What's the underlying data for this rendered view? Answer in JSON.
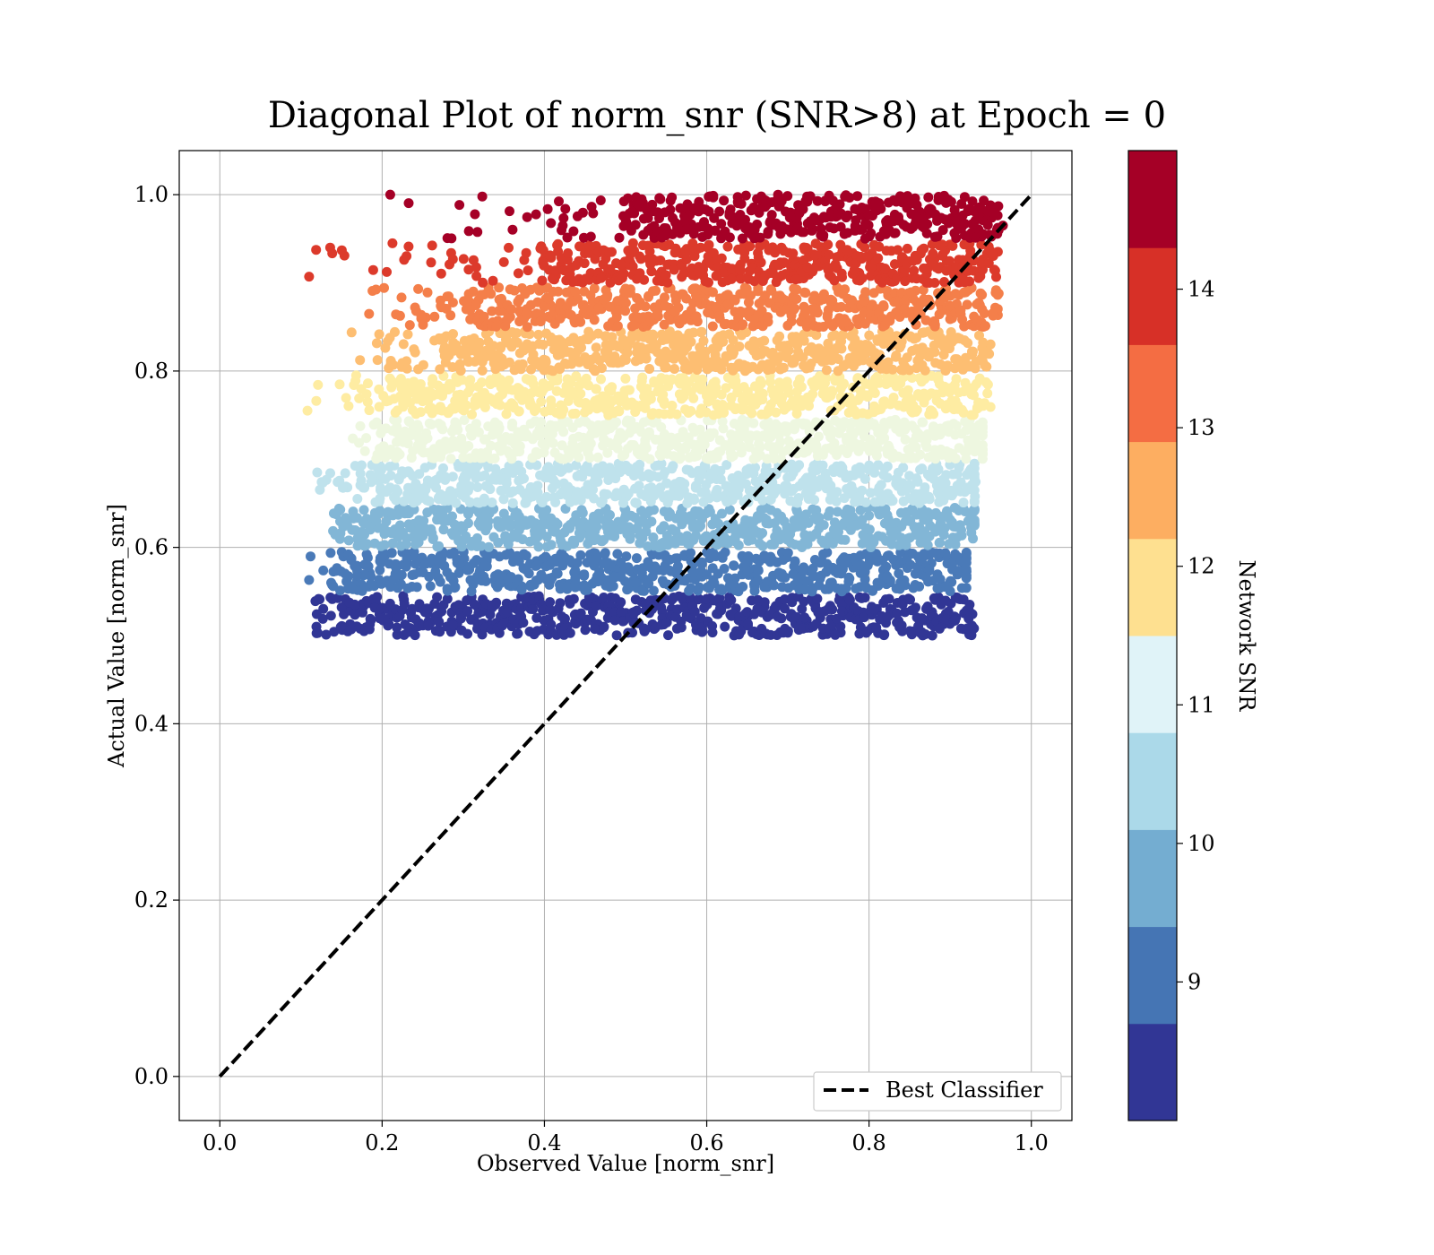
{
  "chart_data": {
    "type": "scatter",
    "title": "Diagonal Plot of norm_snr (SNR>8) at Epoch = 0",
    "xlabel": "Observed Value [norm_snr]",
    "ylabel": "Actual Value [norm_snr]",
    "xlim": [
      -0.05,
      1.05
    ],
    "ylim": [
      -0.05,
      1.05
    ],
    "xticks": [
      0.0,
      0.2,
      0.4,
      0.6,
      0.8,
      1.0
    ],
    "yticks": [
      0.0,
      0.2,
      0.4,
      0.6,
      0.8,
      1.0
    ],
    "xtick_labels": [
      "0.0",
      "0.2",
      "0.4",
      "0.6",
      "0.8",
      "1.0"
    ],
    "ytick_labels": [
      "0.0",
      "0.2",
      "0.4",
      "0.6",
      "0.8",
      "1.0"
    ],
    "grid": true,
    "legend": {
      "position": "lower-right",
      "entries": [
        "Best Classifier"
      ]
    },
    "reference_line": {
      "label": "Best Classifier",
      "style": "dashed",
      "color": "#000000",
      "x": [
        0.0,
        1.0
      ],
      "y": [
        0.0,
        1.0
      ]
    },
    "colorbar": {
      "label": "Network SNR",
      "range": [
        8,
        15
      ],
      "ticks": [
        9,
        10,
        11,
        12,
        13,
        14
      ],
      "tick_labels": [
        "9",
        "10",
        "11",
        "12",
        "13",
        "14"
      ],
      "colors": [
        "#313695",
        "#4575b4",
        "#74add1",
        "#abd9e9",
        "#e0f3f8",
        "#fee090",
        "#fdae61",
        "#f46d43",
        "#d73027",
        "#a50026"
      ]
    },
    "bands": [
      {
        "snr": 8.35,
        "color": "#313695",
        "y": [
          0.5,
          0.545
        ],
        "x": [
          0.17,
          0.92
        ],
        "x_tail": [
          0.11,
          0.93
        ]
      },
      {
        "snr": 9.05,
        "color": "#4a7ab8",
        "y": [
          0.55,
          0.595
        ],
        "x": [
          0.17,
          0.92
        ],
        "x_tail": [
          0.11,
          0.92
        ]
      },
      {
        "snr": 9.75,
        "color": "#82b6d6",
        "y": [
          0.6,
          0.645
        ],
        "x": [
          0.18,
          0.93
        ],
        "x_tail": [
          0.13,
          0.93
        ]
      },
      {
        "snr": 10.45,
        "color": "#bfe2ec",
        "y": [
          0.65,
          0.695
        ],
        "x": [
          0.2,
          0.93
        ],
        "x_tail": [
          0.11,
          0.93
        ]
      },
      {
        "snr": 11.15,
        "color": "#eef7e0",
        "y": [
          0.7,
          0.745
        ],
        "x": [
          0.22,
          0.94
        ],
        "x_tail": [
          0.16,
          0.94
        ]
      },
      {
        "snr": 11.85,
        "color": "#feeca2",
        "y": [
          0.75,
          0.795
        ],
        "x": [
          0.23,
          0.94
        ],
        "x_tail": [
          0.11,
          0.95
        ]
      },
      {
        "snr": 12.55,
        "color": "#fdbe72",
        "y": [
          0.8,
          0.845
        ],
        "x": [
          0.28,
          0.94
        ],
        "x_tail": [
          0.16,
          0.95
        ]
      },
      {
        "snr": 13.25,
        "color": "#f47f4a",
        "y": [
          0.85,
          0.895
        ],
        "x": [
          0.31,
          0.95
        ],
        "x_tail": [
          0.17,
          0.96
        ]
      },
      {
        "snr": 13.95,
        "color": "#dc3a2b",
        "y": [
          0.9,
          0.945
        ],
        "x": [
          0.4,
          0.95
        ],
        "x_tail": [
          0.11,
          0.96
        ]
      },
      {
        "snr": 14.65,
        "color": "#a50026",
        "y": [
          0.95,
          1.0
        ],
        "x": [
          0.5,
          0.95
        ],
        "x_tail": [
          0.2,
          0.96
        ]
      }
    ],
    "notable_points": [
      {
        "x": 0.11,
        "y": 0.907,
        "color": "#dc3a2b"
      },
      {
        "x": 0.136,
        "y": 0.94,
        "color": "#dc3a2b"
      },
      {
        "x": 0.21,
        "y": 1.0,
        "color": "#a50026"
      },
      {
        "x": 0.108,
        "y": 0.755,
        "color": "#feeca2"
      },
      {
        "x": 0.12,
        "y": 0.685,
        "color": "#bfe2ec"
      },
      {
        "x": 0.11,
        "y": 0.563,
        "color": "#4a7ab8"
      },
      {
        "x": 0.119,
        "y": 0.51,
        "color": "#313695"
      },
      {
        "x": 0.878,
        "y": 0.5,
        "color": "#313695"
      },
      {
        "x": 0.906,
        "y": 0.517,
        "color": "#313695"
      },
      {
        "x": 0.928,
        "y": 0.61,
        "color": "#82b6d6"
      },
      {
        "x": 0.965,
        "y": 0.965,
        "color": "#a50026"
      }
    ]
  }
}
